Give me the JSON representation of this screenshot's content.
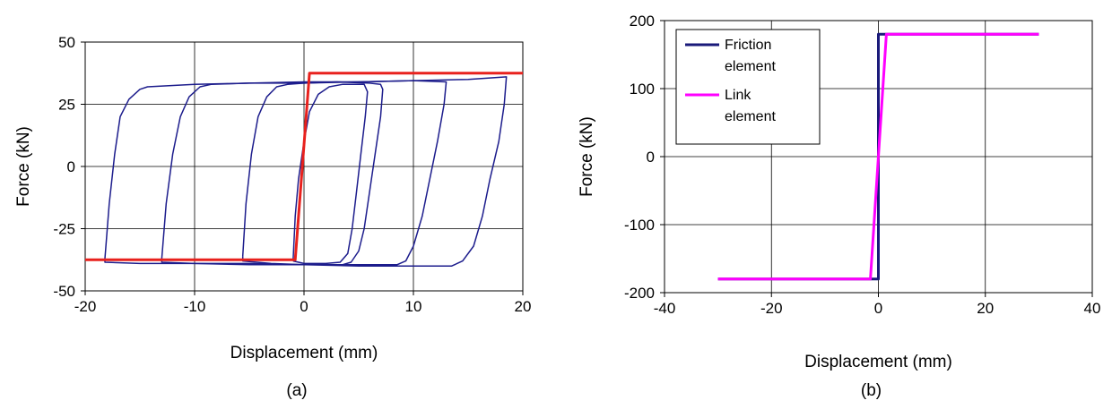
{
  "chart_data": [
    {
      "type": "line",
      "panel_label": "(a)",
      "xlabel": "Displacement (mm)",
      "ylabel": "Force (kN)",
      "xlim": [
        -20,
        20
      ],
      "ylim": [
        -50,
        50
      ],
      "x_ticks": [
        -20,
        -10,
        0,
        10,
        20
      ],
      "y_ticks": [
        -50,
        -25,
        0,
        25,
        50
      ],
      "grid": true,
      "series": [
        {
          "color": "#1c1c8c",
          "description_points": [
            [
              -18.2,
              -37
            ],
            [
              -17.8,
              -15
            ],
            [
              -17.3,
              5
            ],
            [
              -16.8,
              20
            ],
            [
              -16.0,
              27
            ],
            [
              -15.0,
              31
            ],
            [
              -14.3,
              32
            ],
            [
              -10,
              33
            ],
            [
              -5,
              33.5
            ],
            [
              0,
              34
            ],
            [
              5,
              34
            ],
            [
              10,
              34.5
            ],
            [
              15,
              35
            ],
            [
              18.5,
              36
            ],
            [
              18.3,
              25
            ],
            [
              17.8,
              10
            ],
            [
              17.0,
              -5
            ],
            [
              16.3,
              -20
            ],
            [
              15.5,
              -32
            ],
            [
              14.5,
              -38
            ],
            [
              13.5,
              -40
            ],
            [
              5,
              -40
            ],
            [
              0,
              -39.5
            ],
            [
              -5,
              -39.5
            ],
            [
              -10,
              -39
            ],
            [
              -15,
              -39
            ],
            [
              -18.2,
              -38.5
            ],
            [
              -18.2,
              -37
            ]
          ]
        },
        {
          "color": "#1c1c8c",
          "description_points": [
            [
              -13.0,
              -37
            ],
            [
              -12.6,
              -15
            ],
            [
              -12.0,
              5
            ],
            [
              -11.3,
              20
            ],
            [
              -10.5,
              28
            ],
            [
              -9.5,
              32
            ],
            [
              -8.5,
              33
            ],
            [
              -5,
              33.5
            ],
            [
              0,
              33.5
            ],
            [
              5,
              34
            ],
            [
              10,
              34.5
            ],
            [
              13.0,
              34
            ],
            [
              12.8,
              25
            ],
            [
              12.2,
              10
            ],
            [
              11.5,
              -5
            ],
            [
              10.8,
              -20
            ],
            [
              10.0,
              -32
            ],
            [
              9.3,
              -38
            ],
            [
              8.5,
              -39.5
            ],
            [
              5,
              -39.5
            ],
            [
              0,
              -39.5
            ],
            [
              -5,
              -39
            ],
            [
              -10,
              -39
            ],
            [
              -13.0,
              -38.5
            ],
            [
              -13.0,
              -37
            ]
          ]
        },
        {
          "color": "#1c1c8c",
          "description_points": [
            [
              -5.6,
              -36
            ],
            [
              -5.3,
              -15
            ],
            [
              -4.8,
              5
            ],
            [
              -4.2,
              20
            ],
            [
              -3.4,
              28
            ],
            [
              -2.5,
              32
            ],
            [
              -1.5,
              33
            ],
            [
              0,
              33.5
            ],
            [
              3,
              34
            ],
            [
              6,
              33.5
            ],
            [
              7,
              33
            ],
            [
              7.2,
              31
            ],
            [
              7.0,
              20
            ],
            [
              6.5,
              5
            ],
            [
              6.0,
              -10
            ],
            [
              5.5,
              -25
            ],
            [
              5.0,
              -34
            ],
            [
              4.3,
              -38.5
            ],
            [
              3.5,
              -39.5
            ],
            [
              0,
              -39.5
            ],
            [
              -3,
              -39
            ],
            [
              -5.6,
              -38
            ],
            [
              -5.6,
              -36
            ]
          ]
        },
        {
          "color": "#1c1c8c",
          "description_points": [
            [
              -1.0,
              -38
            ],
            [
              -0.8,
              -20
            ],
            [
              -0.5,
              -5
            ],
            [
              0,
              10
            ],
            [
              0.5,
              22
            ],
            [
              1.3,
              29
            ],
            [
              2.3,
              32
            ],
            [
              3.5,
              33
            ],
            [
              5.5,
              33
            ],
            [
              5.8,
              30
            ],
            [
              5.6,
              20
            ],
            [
              5.2,
              5
            ],
            [
              4.8,
              -10
            ],
            [
              4.4,
              -25
            ],
            [
              4.0,
              -35
            ],
            [
              3.3,
              -38.5
            ],
            [
              2,
              -39
            ],
            [
              0,
              -39
            ],
            [
              -1.0,
              -38
            ]
          ]
        },
        {
          "color": "#e8211d",
          "description_points": [
            [
              -20,
              -37.5
            ],
            [
              -0.8,
              -37.5
            ],
            [
              0.5,
              37.5
            ],
            [
              20,
              37.5
            ]
          ]
        }
      ]
    },
    {
      "type": "line",
      "panel_label": "(b)",
      "xlabel": "Displacement (mm)",
      "ylabel": "Force (kN)",
      "xlim": [
        -40,
        40
      ],
      "ylim": [
        -200,
        200
      ],
      "x_ticks": [
        -40,
        -20,
        0,
        20,
        40
      ],
      "y_ticks": [
        -200,
        -100,
        0,
        100,
        200
      ],
      "grid": true,
      "legend": "top-left",
      "series": [
        {
          "name": "Friction element",
          "legend_lines": [
            "Friction",
            "element"
          ],
          "color": "#1a1a7a",
          "points": [
            [
              -30,
              -180
            ],
            [
              0,
              -180
            ],
            [
              0,
              180
            ],
            [
              30,
              180
            ]
          ]
        },
        {
          "name": "Link element",
          "legend_lines": [
            "Link",
            "element"
          ],
          "color": "#ff00ff",
          "points": [
            [
              -30,
              -180
            ],
            [
              -1.5,
              -180
            ],
            [
              1.5,
              180
            ],
            [
              30,
              180
            ]
          ]
        }
      ]
    }
  ]
}
